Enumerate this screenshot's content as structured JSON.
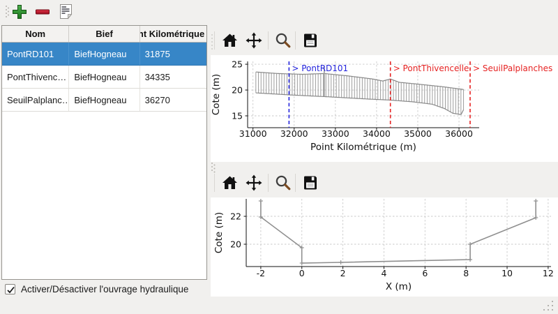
{
  "window": {
    "bg": "#f1f0ee"
  },
  "main_toolbar": {
    "buttons": [
      {
        "label": "add",
        "icon": "plus-icon",
        "color": "#2d8f2d"
      },
      {
        "label": "remove",
        "icon": "minus-icon",
        "color": "#c01228"
      },
      {
        "label": "edit-notes",
        "icon": "document-icon"
      }
    ]
  },
  "table": {
    "columns": [
      "Nom",
      "Bief",
      "Point Kilométrique"
    ],
    "rows": [
      {
        "nom": "PontRD101",
        "bief": "BiefHogneau",
        "pk": "31875",
        "selected": true
      },
      {
        "nom": "PontThivenc…",
        "bief": "BiefHogneau",
        "pk": "34335",
        "selected": false
      },
      {
        "nom": "SeuilPalplanc…",
        "bief": "BiefHogneau",
        "pk": "36270",
        "selected": false
      }
    ],
    "selection_color": "#3786c7"
  },
  "checkbox": {
    "checked": true,
    "label": "Activer/Désactiver l'ouvrage hydraulique"
  },
  "plot_toolbars": {
    "icons": [
      "home-icon",
      "pan-icon",
      "zoom-icon",
      "save-icon"
    ]
  },
  "chart_data": [
    {
      "id": "longitudinal-profile",
      "type": "line",
      "title": "",
      "xlabel": "Point Kilométrique (m)",
      "ylabel": "Cote (m)",
      "xlim": [
        30870,
        36490
      ],
      "ylim": [
        12.7,
        25.55
      ],
      "xticks": [
        31000,
        32000,
        33000,
        34000,
        35000,
        36000
      ],
      "yticks": [
        15,
        20,
        25
      ],
      "grid": true,
      "line_color": "#9d9d9d",
      "envelope_color": "#878787",
      "hatch_step": 63,
      "series": [
        {
          "name": "top_envelope",
          "points": [
            [
              31070,
              23.5
            ],
            [
              31600,
              23.2
            ],
            [
              32200,
              23.05
            ],
            [
              32730,
              23.2
            ],
            [
              33300,
              22.75
            ],
            [
              33900,
              22.15
            ],
            [
              34150,
              21.75
            ],
            [
              34335,
              22.15
            ],
            [
              34550,
              21.5
            ],
            [
              35000,
              21.15
            ],
            [
              35600,
              20.65
            ],
            [
              36120,
              20.1
            ]
          ]
        },
        {
          "name": "bottom_envelope",
          "points": [
            [
              31070,
              19.45
            ],
            [
              31900,
              19.05
            ],
            [
              32800,
              18.7
            ],
            [
              33800,
              18.25
            ],
            [
              34335,
              18.05
            ],
            [
              34900,
              17.7
            ],
            [
              35350,
              17.25
            ],
            [
              35650,
              16.4
            ],
            [
              35850,
              15.5
            ],
            [
              36050,
              15.25
            ],
            [
              36120,
              16.35
            ]
          ]
        }
      ],
      "spike": {
        "x": 32730,
        "y_top": 24.65
      },
      "markers": [
        {
          "label": "> PontRD101",
          "x": 31875,
          "color": "#2424dd"
        },
        {
          "label": "> PontThivencelle",
          "x": 34335,
          "color": "#e62222"
        },
        {
          "label": "> SeuilPalplanches",
          "x": 36270,
          "color": "#e62222"
        }
      ]
    },
    {
      "id": "cross-section",
      "type": "line",
      "title": "",
      "xlabel": "X (m)",
      "ylabel": "Cote (m)",
      "xlim": [
        -2.71,
        12.14
      ],
      "ylim": [
        18.4,
        23.25
      ],
      "xticks": [
        -2,
        0,
        2,
        4,
        6,
        8,
        10,
        12
      ],
      "yticks": [
        20,
        22
      ],
      "grid": true,
      "line_color": "#8f8f8f",
      "points": [
        [
          -2,
          23.1
        ],
        [
          -2,
          21.95
        ],
        [
          0,
          19.75
        ],
        [
          0,
          18.65
        ],
        [
          1.9,
          18.7
        ],
        [
          8.2,
          18.9
        ],
        [
          8.2,
          20.0
        ],
        [
          11.4,
          21.9
        ],
        [
          11.4,
          23.1
        ]
      ]
    }
  ]
}
